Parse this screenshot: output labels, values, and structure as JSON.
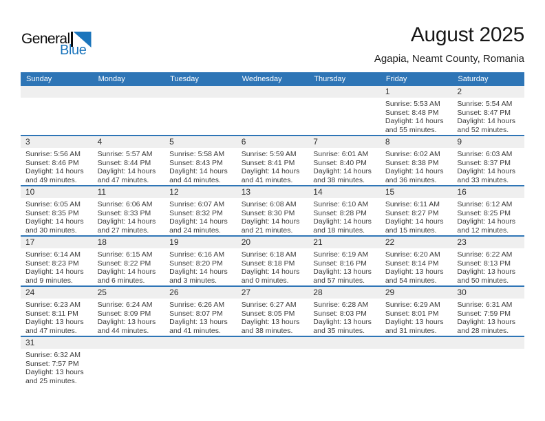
{
  "logo": {
    "part1": "General",
    "part2": "Blue"
  },
  "header": {
    "title": "August 2025",
    "subtitle": "Agapia, Neamt County, Romania"
  },
  "weekday_headers": [
    "Sunday",
    "Monday",
    "Tuesday",
    "Wednesday",
    "Thursday",
    "Friday",
    "Saturday"
  ],
  "colors": {
    "header_blue": "#2e75b6",
    "separator_blue": "#2e75b6",
    "day_band_gray": "#efefef",
    "logo_blue": "#1b75bc",
    "weekday_text": "#ffffff"
  },
  "weeks": [
    [
      null,
      null,
      null,
      null,
      null,
      {
        "day": "1",
        "lines": [
          "Sunrise: 5:53 AM",
          "Sunset: 8:48 PM",
          "Daylight: 14 hours",
          "and 55 minutes."
        ]
      },
      {
        "day": "2",
        "lines": [
          "Sunrise: 5:54 AM",
          "Sunset: 8:47 PM",
          "Daylight: 14 hours",
          "and 52 minutes."
        ]
      }
    ],
    [
      {
        "day": "3",
        "lines": [
          "Sunrise: 5:56 AM",
          "Sunset: 8:46 PM",
          "Daylight: 14 hours",
          "and 49 minutes."
        ]
      },
      {
        "day": "4",
        "lines": [
          "Sunrise: 5:57 AM",
          "Sunset: 8:44 PM",
          "Daylight: 14 hours",
          "and 47 minutes."
        ]
      },
      {
        "day": "5",
        "lines": [
          "Sunrise: 5:58 AM",
          "Sunset: 8:43 PM",
          "Daylight: 14 hours",
          "and 44 minutes."
        ]
      },
      {
        "day": "6",
        "lines": [
          "Sunrise: 5:59 AM",
          "Sunset: 8:41 PM",
          "Daylight: 14 hours",
          "and 41 minutes."
        ]
      },
      {
        "day": "7",
        "lines": [
          "Sunrise: 6:01 AM",
          "Sunset: 8:40 PM",
          "Daylight: 14 hours",
          "and 38 minutes."
        ]
      },
      {
        "day": "8",
        "lines": [
          "Sunrise: 6:02 AM",
          "Sunset: 8:38 PM",
          "Daylight: 14 hours",
          "and 36 minutes."
        ]
      },
      {
        "day": "9",
        "lines": [
          "Sunrise: 6:03 AM",
          "Sunset: 8:37 PM",
          "Daylight: 14 hours",
          "and 33 minutes."
        ]
      }
    ],
    [
      {
        "day": "10",
        "lines": [
          "Sunrise: 6:05 AM",
          "Sunset: 8:35 PM",
          "Daylight: 14 hours",
          "and 30 minutes."
        ]
      },
      {
        "day": "11",
        "lines": [
          "Sunrise: 6:06 AM",
          "Sunset: 8:33 PM",
          "Daylight: 14 hours",
          "and 27 minutes."
        ]
      },
      {
        "day": "12",
        "lines": [
          "Sunrise: 6:07 AM",
          "Sunset: 8:32 PM",
          "Daylight: 14 hours",
          "and 24 minutes."
        ]
      },
      {
        "day": "13",
        "lines": [
          "Sunrise: 6:08 AM",
          "Sunset: 8:30 PM",
          "Daylight: 14 hours",
          "and 21 minutes."
        ]
      },
      {
        "day": "14",
        "lines": [
          "Sunrise: 6:10 AM",
          "Sunset: 8:28 PM",
          "Daylight: 14 hours",
          "and 18 minutes."
        ]
      },
      {
        "day": "15",
        "lines": [
          "Sunrise: 6:11 AM",
          "Sunset: 8:27 PM",
          "Daylight: 14 hours",
          "and 15 minutes."
        ]
      },
      {
        "day": "16",
        "lines": [
          "Sunrise: 6:12 AM",
          "Sunset: 8:25 PM",
          "Daylight: 14 hours",
          "and 12 minutes."
        ]
      }
    ],
    [
      {
        "day": "17",
        "lines": [
          "Sunrise: 6:14 AM",
          "Sunset: 8:23 PM",
          "Daylight: 14 hours",
          "and 9 minutes."
        ]
      },
      {
        "day": "18",
        "lines": [
          "Sunrise: 6:15 AM",
          "Sunset: 8:22 PM",
          "Daylight: 14 hours",
          "and 6 minutes."
        ]
      },
      {
        "day": "19",
        "lines": [
          "Sunrise: 6:16 AM",
          "Sunset: 8:20 PM",
          "Daylight: 14 hours",
          "and 3 minutes."
        ]
      },
      {
        "day": "20",
        "lines": [
          "Sunrise: 6:18 AM",
          "Sunset: 8:18 PM",
          "Daylight: 14 hours",
          "and 0 minutes."
        ]
      },
      {
        "day": "21",
        "lines": [
          "Sunrise: 6:19 AM",
          "Sunset: 8:16 PM",
          "Daylight: 13 hours",
          "and 57 minutes."
        ]
      },
      {
        "day": "22",
        "lines": [
          "Sunrise: 6:20 AM",
          "Sunset: 8:14 PM",
          "Daylight: 13 hours",
          "and 54 minutes."
        ]
      },
      {
        "day": "23",
        "lines": [
          "Sunrise: 6:22 AM",
          "Sunset: 8:13 PM",
          "Daylight: 13 hours",
          "and 50 minutes."
        ]
      }
    ],
    [
      {
        "day": "24",
        "lines": [
          "Sunrise: 6:23 AM",
          "Sunset: 8:11 PM",
          "Daylight: 13 hours",
          "and 47 minutes."
        ]
      },
      {
        "day": "25",
        "lines": [
          "Sunrise: 6:24 AM",
          "Sunset: 8:09 PM",
          "Daylight: 13 hours",
          "and 44 minutes."
        ]
      },
      {
        "day": "26",
        "lines": [
          "Sunrise: 6:26 AM",
          "Sunset: 8:07 PM",
          "Daylight: 13 hours",
          "and 41 minutes."
        ]
      },
      {
        "day": "27",
        "lines": [
          "Sunrise: 6:27 AM",
          "Sunset: 8:05 PM",
          "Daylight: 13 hours",
          "and 38 minutes."
        ]
      },
      {
        "day": "28",
        "lines": [
          "Sunrise: 6:28 AM",
          "Sunset: 8:03 PM",
          "Daylight: 13 hours",
          "and 35 minutes."
        ]
      },
      {
        "day": "29",
        "lines": [
          "Sunrise: 6:29 AM",
          "Sunset: 8:01 PM",
          "Daylight: 13 hours",
          "and 31 minutes."
        ]
      },
      {
        "day": "30",
        "lines": [
          "Sunrise: 6:31 AM",
          "Sunset: 7:59 PM",
          "Daylight: 13 hours",
          "and 28 minutes."
        ]
      }
    ],
    [
      {
        "day": "31",
        "lines": [
          "Sunrise: 6:32 AM",
          "Sunset: 7:57 PM",
          "Daylight: 13 hours",
          "and 25 minutes."
        ]
      },
      null,
      null,
      null,
      null,
      null,
      null
    ]
  ]
}
